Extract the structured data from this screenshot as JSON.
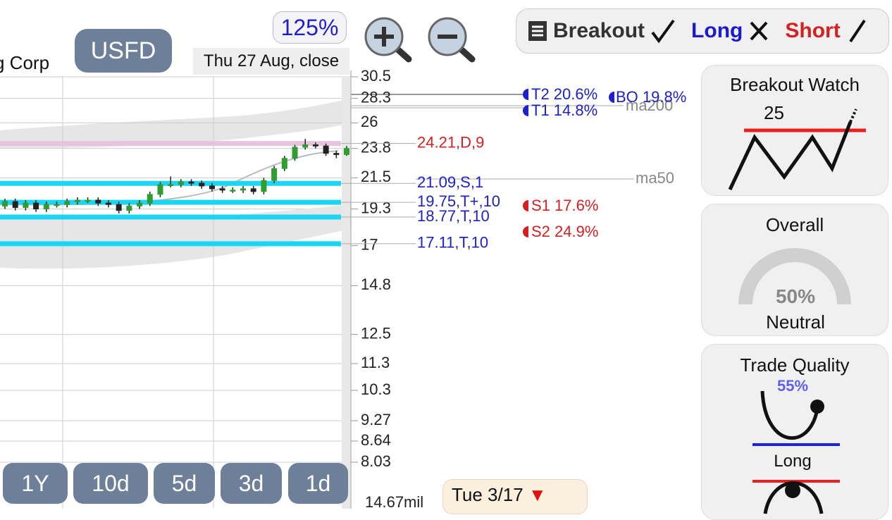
{
  "ui": {
    "company": "g Corp",
    "ticker": "USFD",
    "zoom": "125%",
    "date": "Thu 27 Aug, close",
    "toolbar": {
      "breakout": "Breakout",
      "long": "Long",
      "short": "Short"
    },
    "annotations": {
      "t2": "T2 20.6%",
      "t1": "T1 14.8%",
      "bo": "BO 19.8%",
      "s1": "S1 17.6%",
      "s2": "S2 24.9%",
      "ma200": "ma200",
      "ma50": "ma50"
    },
    "panels": {
      "breakout_watch": {
        "title": "Breakout Watch",
        "value": "25"
      },
      "overall": {
        "title": "Overall",
        "value": "50%",
        "status": "Neutral"
      },
      "trade_quality": {
        "title": "Trade Quality",
        "value": "55%",
        "status": "Long"
      }
    },
    "buttons": [
      "1Y",
      "10d",
      "5d",
      "3d",
      "1d"
    ],
    "footer_date": "Tue 3/17",
    "footer_arrow": "▼",
    "volume": "14.67mil"
  },
  "chart_data": {
    "type": "candlestick",
    "log_scale": true,
    "grid": true,
    "ylim": [
      8.03,
      30.5
    ],
    "yticks": [
      30.5,
      28.3,
      26,
      23.8,
      21.5,
      19.3,
      17,
      14.8,
      12.5,
      11.3,
      10.3,
      9.27,
      8.64,
      8.03
    ],
    "up_color": "#2e9e2e",
    "down_color": "#222222",
    "open": [
      19.5,
      19.8,
      19.4,
      19.7,
      19.3,
      19.6,
      19.6,
      19.8,
      19.9,
      19.9,
      19.7,
      19.6,
      19.2,
      19.5,
      19.7,
      20.3,
      21.0,
      21.0,
      21.2,
      21.1,
      20.9,
      20.7,
      20.6,
      20.6,
      20.7,
      20.5,
      21.3,
      22.2,
      23.0,
      23.9,
      24.1,
      24.0,
      23.4,
      23.3
    ],
    "high": [
      20.0,
      20.0,
      19.9,
      19.9,
      19.8,
      19.8,
      20.0,
      20.1,
      20.1,
      20.1,
      19.9,
      19.8,
      19.7,
      19.9,
      20.5,
      21.2,
      21.6,
      21.4,
      21.4,
      21.3,
      21.1,
      20.9,
      20.8,
      20.9,
      20.9,
      21.5,
      22.4,
      23.2,
      24.1,
      24.6,
      24.3,
      24.2,
      23.6,
      24.0
    ],
    "low": [
      19.3,
      19.2,
      19.2,
      19.1,
      19.1,
      19.4,
      19.4,
      19.6,
      19.7,
      19.5,
      19.4,
      19.0,
      19.0,
      19.3,
      19.5,
      20.1,
      20.8,
      20.8,
      20.9,
      20.7,
      20.5,
      20.4,
      20.4,
      20.4,
      20.3,
      20.3,
      21.1,
      22.0,
      22.8,
      23.7,
      23.8,
      23.2,
      23.0,
      23.2
    ],
    "close": [
      19.8,
      19.4,
      19.7,
      19.3,
      19.6,
      19.6,
      19.8,
      19.9,
      19.9,
      19.7,
      19.6,
      19.2,
      19.5,
      19.7,
      20.3,
      21.0,
      21.0,
      21.2,
      21.1,
      20.9,
      20.7,
      20.6,
      20.6,
      20.7,
      20.5,
      21.3,
      22.2,
      23.0,
      23.9,
      24.1,
      24.0,
      23.4,
      23.3,
      23.8
    ],
    "levels": [
      {
        "price": 24.21,
        "label": "24.21,D,9",
        "color": "#e9c3dd",
        "label_color": "#d42020"
      },
      {
        "price": 21.09,
        "label": "21.09,S,1",
        "color": "#1ad6f3",
        "label_color": "#2020c8"
      },
      {
        "price": 19.75,
        "label": "19.75,T+,10",
        "color": "#1ad6f3",
        "label_color": "#2020c8"
      },
      {
        "price": 18.77,
        "label": "18.77,T,10",
        "color": "#1ad6f3",
        "label_color": "#2020c8"
      },
      {
        "price": 17.11,
        "label": "17.11,T,10",
        "color": "#1ad6f3",
        "label_color": "#2020c8"
      }
    ]
  }
}
